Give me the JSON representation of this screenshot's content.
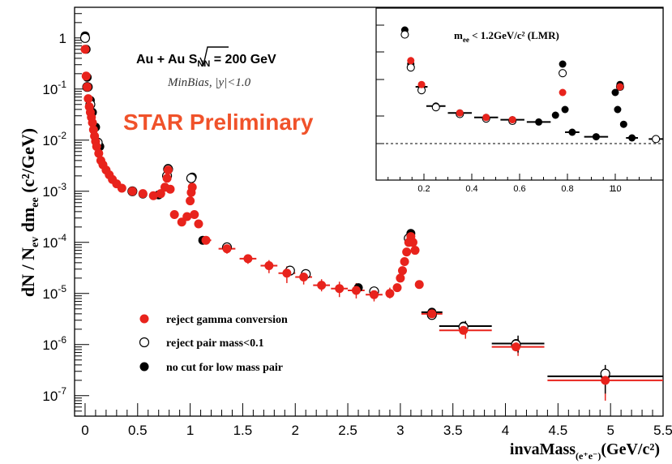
{
  "chart_data": [
    {
      "type": "scatter",
      "title": "",
      "xlabel": "invaMass",
      "xlabel_sub": "(e⁺e⁻)",
      "xlabel_unit": "(GeV/c²)",
      "ylabel": "dN / N",
      "ylabel_sub1": "ev",
      "ylabel_mid": " dm",
      "ylabel_sub2": "ee",
      "ylabel_unit": " (c²/GeV)",
      "xlim": [
        -0.1,
        5.5
      ],
      "ylim_exp": [
        -7.4,
        0.6
      ],
      "y_scale": "log",
      "grid": false,
      "x_ticks": [
        "0",
        "0.5",
        "1",
        "1.5",
        "2",
        "2.5",
        "3",
        "3.5",
        "4",
        "4.5",
        "5",
        "5.5"
      ],
      "y_ticks": [
        {
          "exp": 0,
          "label": "1"
        },
        {
          "exp": -1,
          "label": "10",
          "sup": "-1"
        },
        {
          "exp": -2,
          "label": "10",
          "sup": "-2"
        },
        {
          "exp": -3,
          "label": "10",
          "sup": "-3"
        },
        {
          "exp": -4,
          "label": "10",
          "sup": "-4"
        },
        {
          "exp": -5,
          "label": "10",
          "sup": "-5"
        },
        {
          "exp": -6,
          "label": "10",
          "sup": "-6"
        },
        {
          "exp": -7,
          "label": "10",
          "sup": "-7"
        }
      ],
      "annotations": {
        "system_pre": "Au + Au ",
        "system_s": "S",
        "system_sub": "NN",
        "system_post": " = 200 GeV",
        "selection": "MinBias, |y|<1.0",
        "preliminary": "STAR Preliminary"
      },
      "legend_position": "bottom-left",
      "colors": {
        "red": "#e8231c",
        "black": "#000000",
        "open": "#ffffff",
        "preliminary": "#f0522a"
      },
      "series": [
        {
          "name": "no cut for low mass pair",
          "marker": "filled-black",
          "points": [
            [
              0.0,
              1.1
            ],
            [
              0.01,
              0.6
            ],
            [
              0.02,
              0.17
            ],
            [
              0.03,
              0.11
            ],
            [
              0.05,
              0.06
            ],
            [
              0.07,
              0.035
            ],
            [
              0.1,
              0.018
            ],
            [
              0.14,
              0.0075
            ],
            [
              0.55,
              0.00088
            ],
            [
              0.7,
              0.00085
            ],
            [
              0.79,
              0.0028
            ],
            [
              1.02,
              0.0019
            ],
            [
              1.12,
              0.00011
            ],
            [
              2.6,
              1.3e-05
            ],
            [
              3.1,
              0.00015
            ],
            [
              3.3,
              4.3e-06
            ],
            [
              3.6,
              2.3e-06
            ],
            [
              4.1,
              1.05e-06
            ],
            [
              4.95,
              2.4e-07
            ]
          ]
        },
        {
          "name": "reject pair mass<0.1",
          "marker": "open-circle",
          "points": [
            [
              0.0,
              1.0
            ],
            [
              0.02,
              0.11
            ],
            [
              0.05,
              0.05
            ],
            [
              0.12,
              0.009
            ],
            [
              0.45,
              0.001
            ],
            [
              0.78,
              0.002
            ],
            [
              0.79,
              0.0027
            ],
            [
              1.01,
              0.0018
            ],
            [
              1.35,
              8e-05
            ],
            [
              1.95,
              2.8e-05
            ],
            [
              2.1,
              2.4e-05
            ],
            [
              2.75,
              1.1e-05
            ],
            [
              3.08,
              0.00012
            ],
            [
              3.3,
              3.8e-06
            ],
            [
              3.6,
              2.2e-06
            ],
            [
              4.1,
              1e-06
            ],
            [
              4.95,
              2.7e-07
            ]
          ]
        },
        {
          "name": "reject gamma conversion",
          "marker": "filled-red",
          "points": [
            [
              0.0,
              0.6
            ],
            [
              0.01,
              0.18
            ],
            [
              0.02,
              0.11
            ],
            [
              0.03,
              0.065
            ],
            [
              0.04,
              0.045
            ],
            [
              0.05,
              0.035
            ],
            [
              0.06,
              0.028
            ],
            [
              0.07,
              0.022
            ],
            [
              0.08,
              0.016
            ],
            [
              0.09,
              0.012
            ],
            [
              0.1,
              0.0095
            ],
            [
              0.11,
              0.0075
            ],
            [
              0.13,
              0.0055
            ],
            [
              0.15,
              0.004
            ],
            [
              0.17,
              0.0033
            ],
            [
              0.2,
              0.0026
            ],
            [
              0.23,
              0.0021
            ],
            [
              0.26,
              0.0017
            ],
            [
              0.3,
              0.0014
            ],
            [
              0.35,
              0.00115
            ],
            [
              0.45,
              0.001
            ],
            [
              0.55,
              0.0009
            ],
            [
              0.65,
              0.00082
            ],
            [
              0.72,
              0.0009
            ],
            [
              0.76,
              0.0012
            ],
            [
              0.78,
              0.0018
            ],
            [
              0.79,
              0.0026
            ],
            [
              0.81,
              0.0011
            ],
            [
              0.85,
              0.00035
            ],
            [
              0.92,
              0.00025
            ],
            [
              0.97,
              0.00032
            ],
            [
              1.0,
              0.00065
            ],
            [
              1.01,
              0.00095
            ],
            [
              1.02,
              0.0012
            ],
            [
              1.04,
              0.00035
            ],
            [
              1.08,
              0.00023
            ],
            [
              1.15,
              0.00011
            ],
            [
              1.35,
              7.5e-05
            ],
            [
              1.55,
              4.8e-05
            ],
            [
              1.75,
              3.5e-05
            ],
            [
              1.92,
              2.5e-05
            ],
            [
              2.08,
              2.1e-05
            ],
            [
              2.25,
              1.45e-05
            ],
            [
              2.42,
              1.25e-05
            ],
            [
              2.58,
              1.15e-05
            ],
            [
              2.75,
              9.5e-06
            ],
            [
              2.9,
              1e-05
            ],
            [
              2.97,
              1.3e-05
            ],
            [
              3.0,
              2e-05
            ],
            [
              3.02,
              2.8e-05
            ],
            [
              3.04,
              4.2e-05
            ],
            [
              3.06,
              6.5e-05
            ],
            [
              3.08,
              0.0001
            ],
            [
              3.1,
              0.00013
            ],
            [
              3.12,
              0.0001
            ],
            [
              3.14,
              7e-05
            ],
            [
              3.18,
              1.5e-05
            ],
            [
              3.3,
              4e-06
            ],
            [
              3.6,
              1.9e-06
            ],
            [
              4.1,
              9e-07
            ],
            [
              4.95,
              2e-07
            ]
          ]
        }
      ],
      "error_bars": [
        {
          "x": 3.3,
          "y": 4e-06,
          "xerr": 0.1,
          "ylo": 3.4e-06,
          "yhi": 4.8e-06,
          "color": "red"
        },
        {
          "x": 3.3,
          "y": 4.3e-06,
          "xerr": 0.1,
          "ylo": 3.6e-06,
          "yhi": 5e-06,
          "color": "black"
        },
        {
          "x": 3.62,
          "y": 1.9e-06,
          "xerr": 0.25,
          "ylo": 1.3e-06,
          "yhi": 2.7e-06,
          "color": "red"
        },
        {
          "x": 3.62,
          "y": 2.3e-06,
          "xerr": 0.25,
          "ylo": 1.8e-06,
          "yhi": 2.9e-06,
          "color": "black"
        },
        {
          "x": 4.12,
          "y": 9e-07,
          "xerr": 0.25,
          "ylo": 6e-07,
          "yhi": 1.3e-06,
          "color": "red"
        },
        {
          "x": 4.12,
          "y": 1.05e-06,
          "xerr": 0.25,
          "ylo": 7e-07,
          "yhi": 1.5e-06,
          "color": "black"
        },
        {
          "x": 4.95,
          "y": 2e-07,
          "xerr": 0.55,
          "ylo": 8e-08,
          "yhi": 3.5e-07,
          "color": "red"
        },
        {
          "x": 4.95,
          "y": 2.4e-07,
          "xerr": 0.55,
          "ylo": 1.1e-07,
          "yhi": 4e-07,
          "color": "black"
        },
        {
          "x": 1.15,
          "y": 0.00011,
          "xerr": 0.05,
          "ylo": 9.5e-05,
          "yhi": 0.000125,
          "color": "red"
        },
        {
          "x": 1.35,
          "y": 7.5e-05,
          "xerr": 0.08,
          "ylo": 6e-05,
          "yhi": 9e-05,
          "color": "red"
        },
        {
          "x": 1.55,
          "y": 4.8e-05,
          "xerr": 0.08,
          "ylo": 3.8e-05,
          "yhi": 5.8e-05,
          "color": "red"
        },
        {
          "x": 1.75,
          "y": 3.5e-05,
          "xerr": 0.08,
          "ylo": 2.5e-05,
          "yhi": 4.5e-05,
          "color": "red"
        },
        {
          "x": 1.92,
          "y": 2.5e-05,
          "xerr": 0.08,
          "ylo": 1.6e-05,
          "yhi": 3.4e-05,
          "color": "red"
        },
        {
          "x": 2.08,
          "y": 2.1e-05,
          "xerr": 0.08,
          "ylo": 1.5e-05,
          "yhi": 2.8e-05,
          "color": "red"
        },
        {
          "x": 2.25,
          "y": 1.45e-05,
          "xerr": 0.08,
          "ylo": 1.1e-05,
          "yhi": 1.9e-05,
          "color": "red"
        },
        {
          "x": 2.42,
          "y": 1.25e-05,
          "xerr": 0.08,
          "ylo": 8.5e-06,
          "yhi": 1.7e-05,
          "color": "red"
        },
        {
          "x": 2.58,
          "y": 1.15e-05,
          "xerr": 0.08,
          "ylo": 8e-06,
          "yhi": 1.6e-05,
          "color": "red"
        },
        {
          "x": 2.75,
          "y": 9.5e-06,
          "xerr": 0.08,
          "ylo": 7e-06,
          "yhi": 1.3e-05,
          "color": "red"
        },
        {
          "x": 2.9,
          "y": 1e-05,
          "xerr": 0.04,
          "ylo": 8e-06,
          "yhi": 1.3e-05,
          "color": "red"
        }
      ],
      "legend": [
        {
          "label": "reject gamma conversion",
          "marker": "filled-red"
        },
        {
          "label": "reject pair mass<0.1",
          "marker": "open-circle"
        },
        {
          "label": "no cut for low mass pair",
          "marker": "filled-black"
        }
      ]
    },
    {
      "type": "scatter",
      "title": "",
      "label_pre": "m",
      "label_sub": "ee",
      "label_post": " < 1.2GeV/c² (LMR)",
      "xlim": [
        0.0,
        1.2
      ],
      "x_ticks": [
        "0.2",
        "0.4",
        "0.6",
        "0.8",
        "1.0",
        "1."
      ],
      "y_scale": "linear",
      "dashed_reference": true,
      "series": [
        {
          "name": "no cut for low mass pair",
          "marker": "filled-black",
          "points": [
            [
              0.12,
              1.0
            ],
            [
              0.145,
              0.7
            ],
            [
              0.19,
              0.5
            ],
            [
              0.25,
              0.33
            ],
            [
              0.35,
              0.27
            ],
            [
              0.46,
              0.23
            ],
            [
              0.57,
              0.21
            ],
            [
              0.68,
              0.19
            ],
            [
              0.75,
              0.25
            ],
            [
              0.78,
              0.7
            ],
            [
              0.79,
              0.3
            ],
            [
              0.82,
              0.1
            ],
            [
              0.92,
              0.06
            ],
            [
              1.0,
              0.45
            ],
            [
              1.01,
              0.3
            ],
            [
              1.02,
              0.52
            ],
            [
              1.035,
              0.17
            ],
            [
              1.07,
              0.05
            ],
            [
              1.17,
              0.04
            ]
          ]
        },
        {
          "name": "reject pair mass<0.1",
          "marker": "open-circle",
          "points": [
            [
              0.12,
              0.96
            ],
            [
              0.145,
              0.67
            ],
            [
              0.19,
              0.47
            ],
            [
              0.25,
              0.32
            ],
            [
              0.35,
              0.26
            ],
            [
              0.46,
              0.22
            ],
            [
              0.57,
              0.2
            ],
            [
              0.78,
              0.62
            ],
            [
              1.02,
              0.5
            ],
            [
              1.17,
              0.04
            ]
          ]
        },
        {
          "name": "reject gamma conversion",
          "marker": "filled-red",
          "points": [
            [
              0.145,
              0.73
            ],
            [
              0.19,
              0.52
            ],
            [
              0.35,
              0.27
            ],
            [
              0.46,
              0.23
            ],
            [
              0.57,
              0.21
            ],
            [
              0.78,
              0.45
            ],
            [
              1.02,
              0.5
            ]
          ]
        }
      ],
      "error_bars": [
        {
          "x": 0.19,
          "y": 0.5,
          "xerr": 0.025
        },
        {
          "x": 0.25,
          "y": 0.33,
          "xerr": 0.04
        },
        {
          "x": 0.35,
          "y": 0.27,
          "xerr": 0.05
        },
        {
          "x": 0.46,
          "y": 0.23,
          "xerr": 0.05
        },
        {
          "x": 0.57,
          "y": 0.21,
          "xerr": 0.05
        },
        {
          "x": 0.68,
          "y": 0.19,
          "xerr": 0.05
        },
        {
          "x": 0.82,
          "y": 0.1,
          "xerr": 0.03
        },
        {
          "x": 0.92,
          "y": 0.06,
          "xerr": 0.05
        },
        {
          "x": 1.07,
          "y": 0.05,
          "xerr": 0.025
        },
        {
          "x": 1.17,
          "y": 0.04,
          "xerr": 0.03
        }
      ]
    }
  ]
}
